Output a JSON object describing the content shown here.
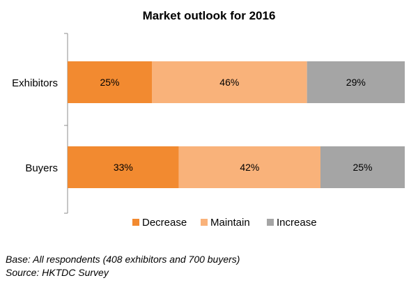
{
  "chart_data": {
    "type": "bar",
    "orientation": "horizontal",
    "stacked": "percent",
    "title": "Market outlook for 2016",
    "categories": [
      "Exhibitors",
      "Buyers"
    ],
    "series": [
      {
        "name": "Decrease",
        "values": [
          25,
          33
        ],
        "labels": [
          "25%",
          "33%"
        ],
        "color": "#F28A30"
      },
      {
        "name": "Maintain",
        "values": [
          46,
          42
        ],
        "labels": [
          "46%",
          "42%"
        ],
        "color": "#F9B27A"
      },
      {
        "name": "Increase",
        "values": [
          29,
          25
        ],
        "labels": [
          "29%",
          "25%"
        ],
        "color": "#A5A5A5"
      }
    ],
    "xlim": [
      0,
      100
    ],
    "grid": false,
    "legend": "bottom"
  },
  "footnotes": {
    "base": "Base: All respondents (408 exhibitors and 700 buyers)",
    "source": "Source: HKTDC Survey"
  }
}
